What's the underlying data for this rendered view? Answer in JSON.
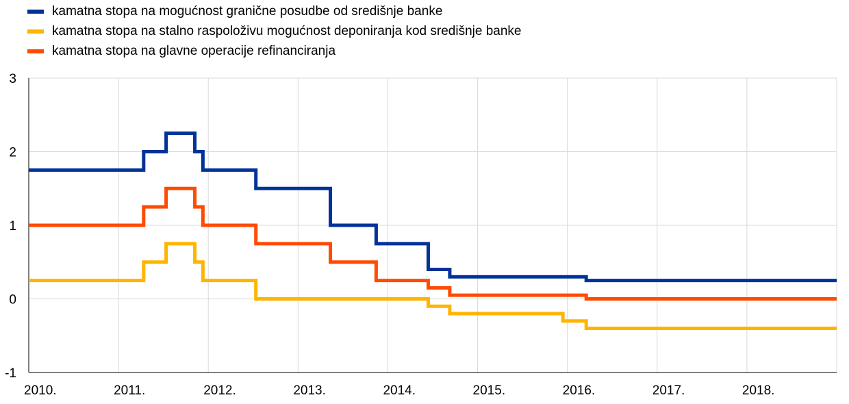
{
  "chart_data": {
    "type": "line",
    "step": true,
    "title": "",
    "xlabel": "",
    "ylabel": "",
    "xlim": [
      2010.0,
      2019.0
    ],
    "ylim": [
      -1,
      3
    ],
    "grid": true,
    "legend_position": "top-left",
    "x_ticks": [
      {
        "value": 2010,
        "label": "2010."
      },
      {
        "value": 2011,
        "label": "2011."
      },
      {
        "value": 2012,
        "label": "2012."
      },
      {
        "value": 2013,
        "label": "2013."
      },
      {
        "value": 2014,
        "label": "2014."
      },
      {
        "value": 2015,
        "label": "2015."
      },
      {
        "value": 2016,
        "label": "2016."
      },
      {
        "value": 2017,
        "label": "2017."
      },
      {
        "value": 2018,
        "label": "2018."
      }
    ],
    "y_ticks": [
      {
        "value": 3,
        "label": "3"
      },
      {
        "value": 2,
        "label": "2"
      },
      {
        "value": 1,
        "label": "1"
      },
      {
        "value": 0,
        "label": "0"
      },
      {
        "value": -1,
        "label": "-1"
      }
    ],
    "series": [
      {
        "name": "kamatna stopa na mogućnost granične posudbe od središnje banke",
        "color": "#003299",
        "x": [
          2010.0,
          2011.28,
          2011.53,
          2011.85,
          2011.94,
          2012.53,
          2013.36,
          2013.87,
          2014.45,
          2014.69,
          2016.21,
          2019.0
        ],
        "y": [
          1.75,
          2.0,
          2.25,
          2.0,
          1.75,
          1.5,
          1.0,
          0.75,
          0.4,
          0.3,
          0.25,
          0.25
        ]
      },
      {
        "name": "kamatna stopa na stalno raspoloživu mogućnost deponiranja kod središnje banke",
        "color": "#FFB400",
        "x": [
          2010.0,
          2011.28,
          2011.53,
          2011.85,
          2011.94,
          2012.53,
          2014.45,
          2014.69,
          2015.95,
          2016.21,
          2019.0
        ],
        "y": [
          0.25,
          0.5,
          0.75,
          0.5,
          0.25,
          0.0,
          -0.1,
          -0.2,
          -0.3,
          -0.4,
          -0.4
        ]
      },
      {
        "name": "kamatna stopa na glavne operacije refinanciranja",
        "color": "#FF4B00",
        "x": [
          2010.0,
          2011.28,
          2011.53,
          2011.85,
          2011.94,
          2012.53,
          2013.36,
          2013.87,
          2014.45,
          2014.69,
          2016.21,
          2019.0
        ],
        "y": [
          1.0,
          1.25,
          1.5,
          1.25,
          1.0,
          0.75,
          0.5,
          0.25,
          0.15,
          0.05,
          0.0,
          0.0
        ]
      }
    ]
  }
}
